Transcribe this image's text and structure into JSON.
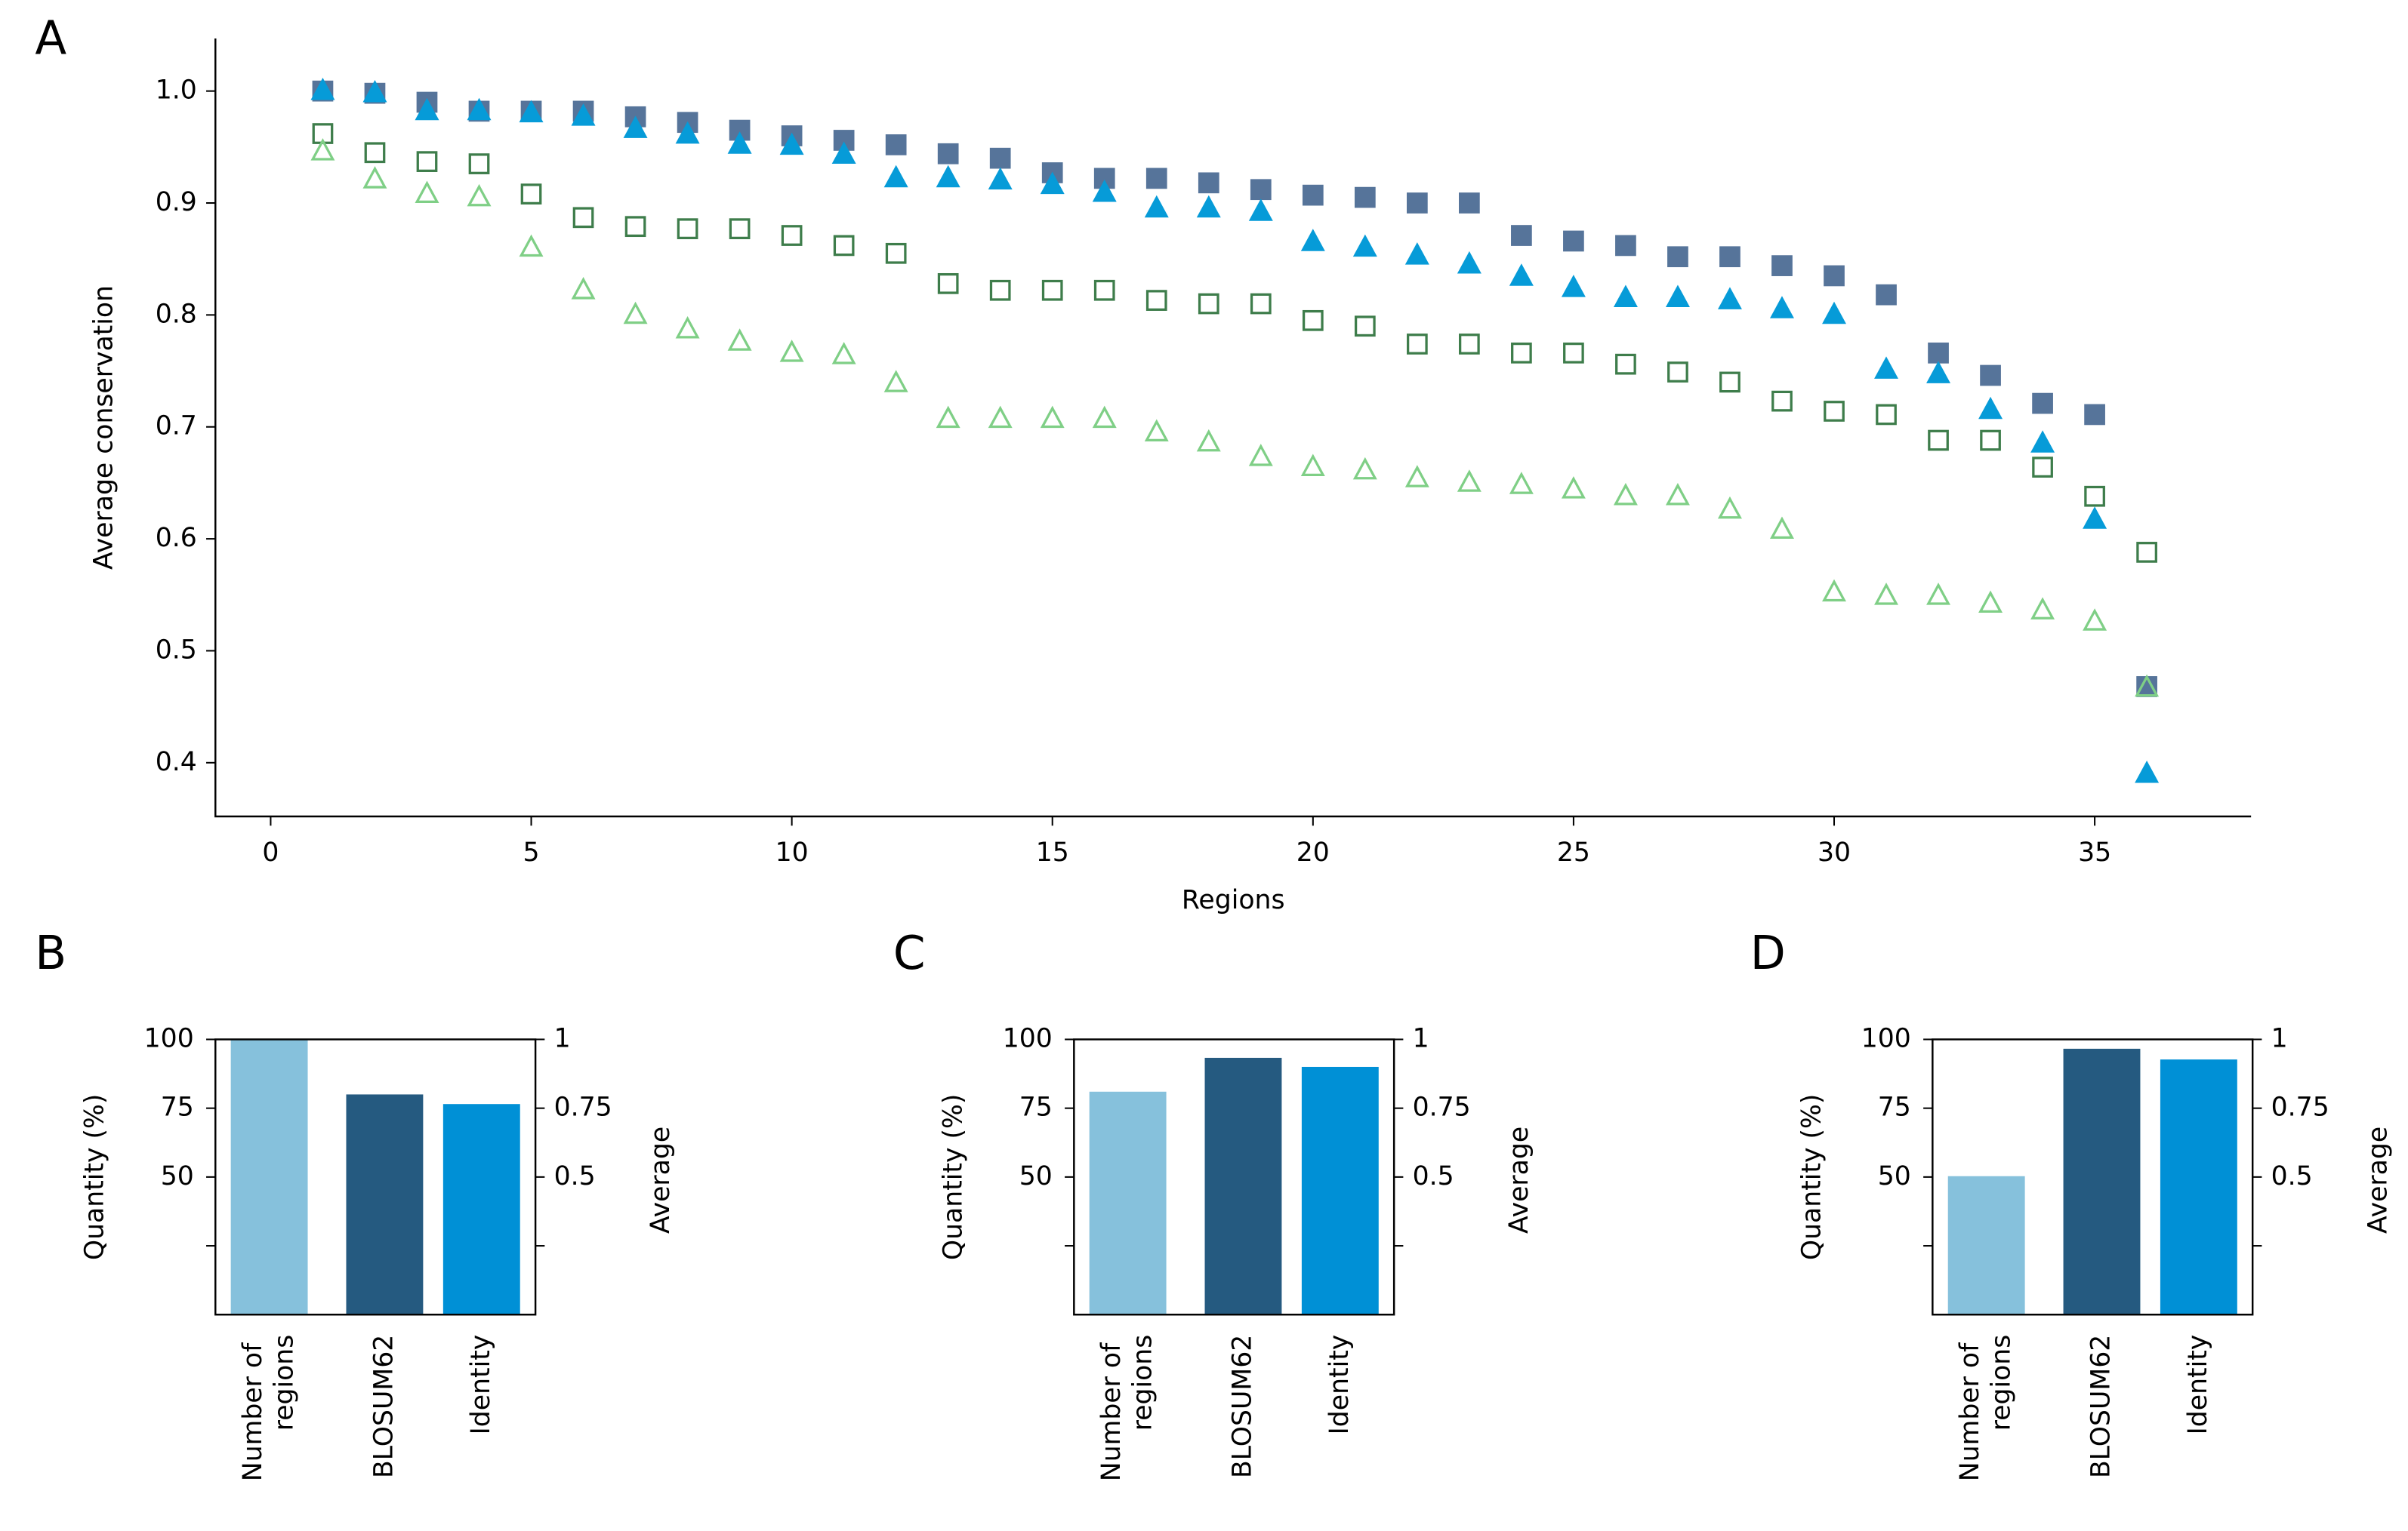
{
  "chart_data": [
    {
      "type": "scatter",
      "panel": "A",
      "xlabel": "Regions",
      "ylabel": "Average conservation",
      "x": [
        1,
        2,
        3,
        4,
        5,
        6,
        7,
        8,
        9,
        10,
        11,
        12,
        13,
        14,
        15,
        16,
        17,
        18,
        19,
        20,
        21,
        22,
        23,
        24,
        25,
        26,
        27,
        28,
        29,
        30,
        31,
        32,
        33,
        34,
        35,
        36
      ],
      "series": [
        {
          "color": "#56749a",
          "marker": "square",
          "filled": true,
          "values": [
            1.0,
            0.998,
            0.99,
            0.982,
            0.982,
            0.982,
            0.977,
            0.972,
            0.965,
            0.96,
            0.956,
            0.952,
            0.944,
            0.94,
            0.927,
            0.922,
            0.922,
            0.918,
            0.912,
            0.907,
            0.905,
            0.9,
            0.9,
            0.871,
            0.866,
            0.862,
            0.852,
            0.852,
            0.844,
            0.835,
            0.818,
            0.766,
            0.746,
            0.721,
            0.711,
            0.468
          ]
        },
        {
          "color": "#069bd8",
          "marker": "triangle",
          "filled": true,
          "values": [
            1.0,
            0.998,
            0.982,
            0.982,
            0.98,
            0.977,
            0.966,
            0.961,
            0.952,
            0.951,
            0.943,
            0.922,
            0.922,
            0.92,
            0.916,
            0.909,
            0.895,
            0.895,
            0.892,
            0.865,
            0.86,
            0.853,
            0.845,
            0.834,
            0.824,
            0.815,
            0.815,
            0.813,
            0.805,
            0.8,
            0.751,
            0.747,
            0.715,
            0.685,
            0.617,
            0.39
          ]
        },
        {
          "color": "#3e7d4b",
          "marker": "square",
          "filled": false,
          "values": [
            0.962,
            0.945,
            0.937,
            0.935,
            0.908,
            0.887,
            0.879,
            0.877,
            0.877,
            0.871,
            0.862,
            0.855,
            0.828,
            0.822,
            0.822,
            0.822,
            0.813,
            0.81,
            0.81,
            0.795,
            0.79,
            0.774,
            0.774,
            0.766,
            0.766,
            0.756,
            0.749,
            0.74,
            0.723,
            0.714,
            0.711,
            0.688,
            0.688,
            0.664,
            0.638,
            0.588
          ]
        },
        {
          "color": "#7fcf86",
          "marker": "triangle",
          "filled": false,
          "values": [
            0.946,
            0.921,
            0.908,
            0.905,
            0.86,
            0.822,
            0.8,
            0.787,
            0.776,
            0.766,
            0.764,
            0.739,
            0.707,
            0.707,
            0.707,
            0.707,
            0.695,
            0.686,
            0.673,
            0.664,
            0.661,
            0.654,
            0.65,
            0.648,
            0.644,
            0.638,
            0.638,
            0.626,
            0.608,
            0.552,
            0.549,
            0.549,
            0.542,
            0.536,
            0.526,
            0.467
          ]
        }
      ],
      "xlim": [
        -1.06,
        38.0
      ],
      "xticks": [
        0,
        5,
        10,
        15,
        20,
        25,
        30,
        35
      ],
      "ylim": [
        0.352,
        1.047
      ],
      "yticks": [
        0.4,
        0.5,
        0.6,
        0.7,
        0.8,
        0.9,
        {
          "value": 1.0,
          "label": "1.0"
        }
      ]
    },
    {
      "type": "bar",
      "panel": "B",
      "ylabel": "Quantity (%)",
      "y2label": "Average",
      "categories": [
        "Number of regions",
        "BLOSUM62",
        "Identity"
      ],
      "values": [
        100,
        0.8,
        0.765
      ],
      "axes": [
        "y",
        "y2",
        "y2"
      ],
      "colors": [
        "#86c1dc",
        "#255a80",
        "#0090d6"
      ],
      "ylim": [
        0,
        100
      ],
      "yticks": [
        {
          "value": 25,
          "label": null
        },
        50,
        75,
        100
      ],
      "y2lim": [
        0,
        1
      ],
      "y2ticks": [
        {
          "value": 0.25,
          "label": null
        },
        0.5,
        0.75,
        1
      ]
    },
    {
      "type": "bar",
      "panel": "C",
      "ylabel": "Quantity (%)",
      "y2label": "Average",
      "categories": [
        "Number of regions",
        "BLOSUM62",
        "Identity"
      ],
      "values": [
        81,
        0.933,
        0.9
      ],
      "axes": [
        "y",
        "y2",
        "y2"
      ],
      "colors": [
        "#86c1dc",
        "#255a80",
        "#0090d6"
      ],
      "ylim": [
        0,
        100
      ],
      "yticks": [
        {
          "value": 25,
          "label": null
        },
        50,
        75,
        100
      ],
      "y2lim": [
        0,
        1
      ],
      "y2ticks": [
        {
          "value": 0.25,
          "label": null
        },
        0.5,
        0.75,
        1
      ]
    },
    {
      "type": "bar",
      "panel": "D",
      "ylabel": "Quantity (%)",
      "y2label": "Average",
      "categories": [
        "Number of regions",
        "BLOSUM62",
        "Identity"
      ],
      "values": [
        50.3,
        0.966,
        0.927
      ],
      "axes": [
        "y",
        "y2",
        "y2"
      ],
      "colors": [
        "#86c1dc",
        "#255a80",
        "#0090d6"
      ],
      "ylim": [
        0,
        100
      ],
      "yticks": [
        {
          "value": 25,
          "label": null
        },
        50,
        75,
        100
      ],
      "y2lim": [
        0,
        1
      ],
      "y2ticks": [
        {
          "value": 0.25,
          "label": null
        },
        0.5,
        0.75,
        1
      ]
    }
  ]
}
